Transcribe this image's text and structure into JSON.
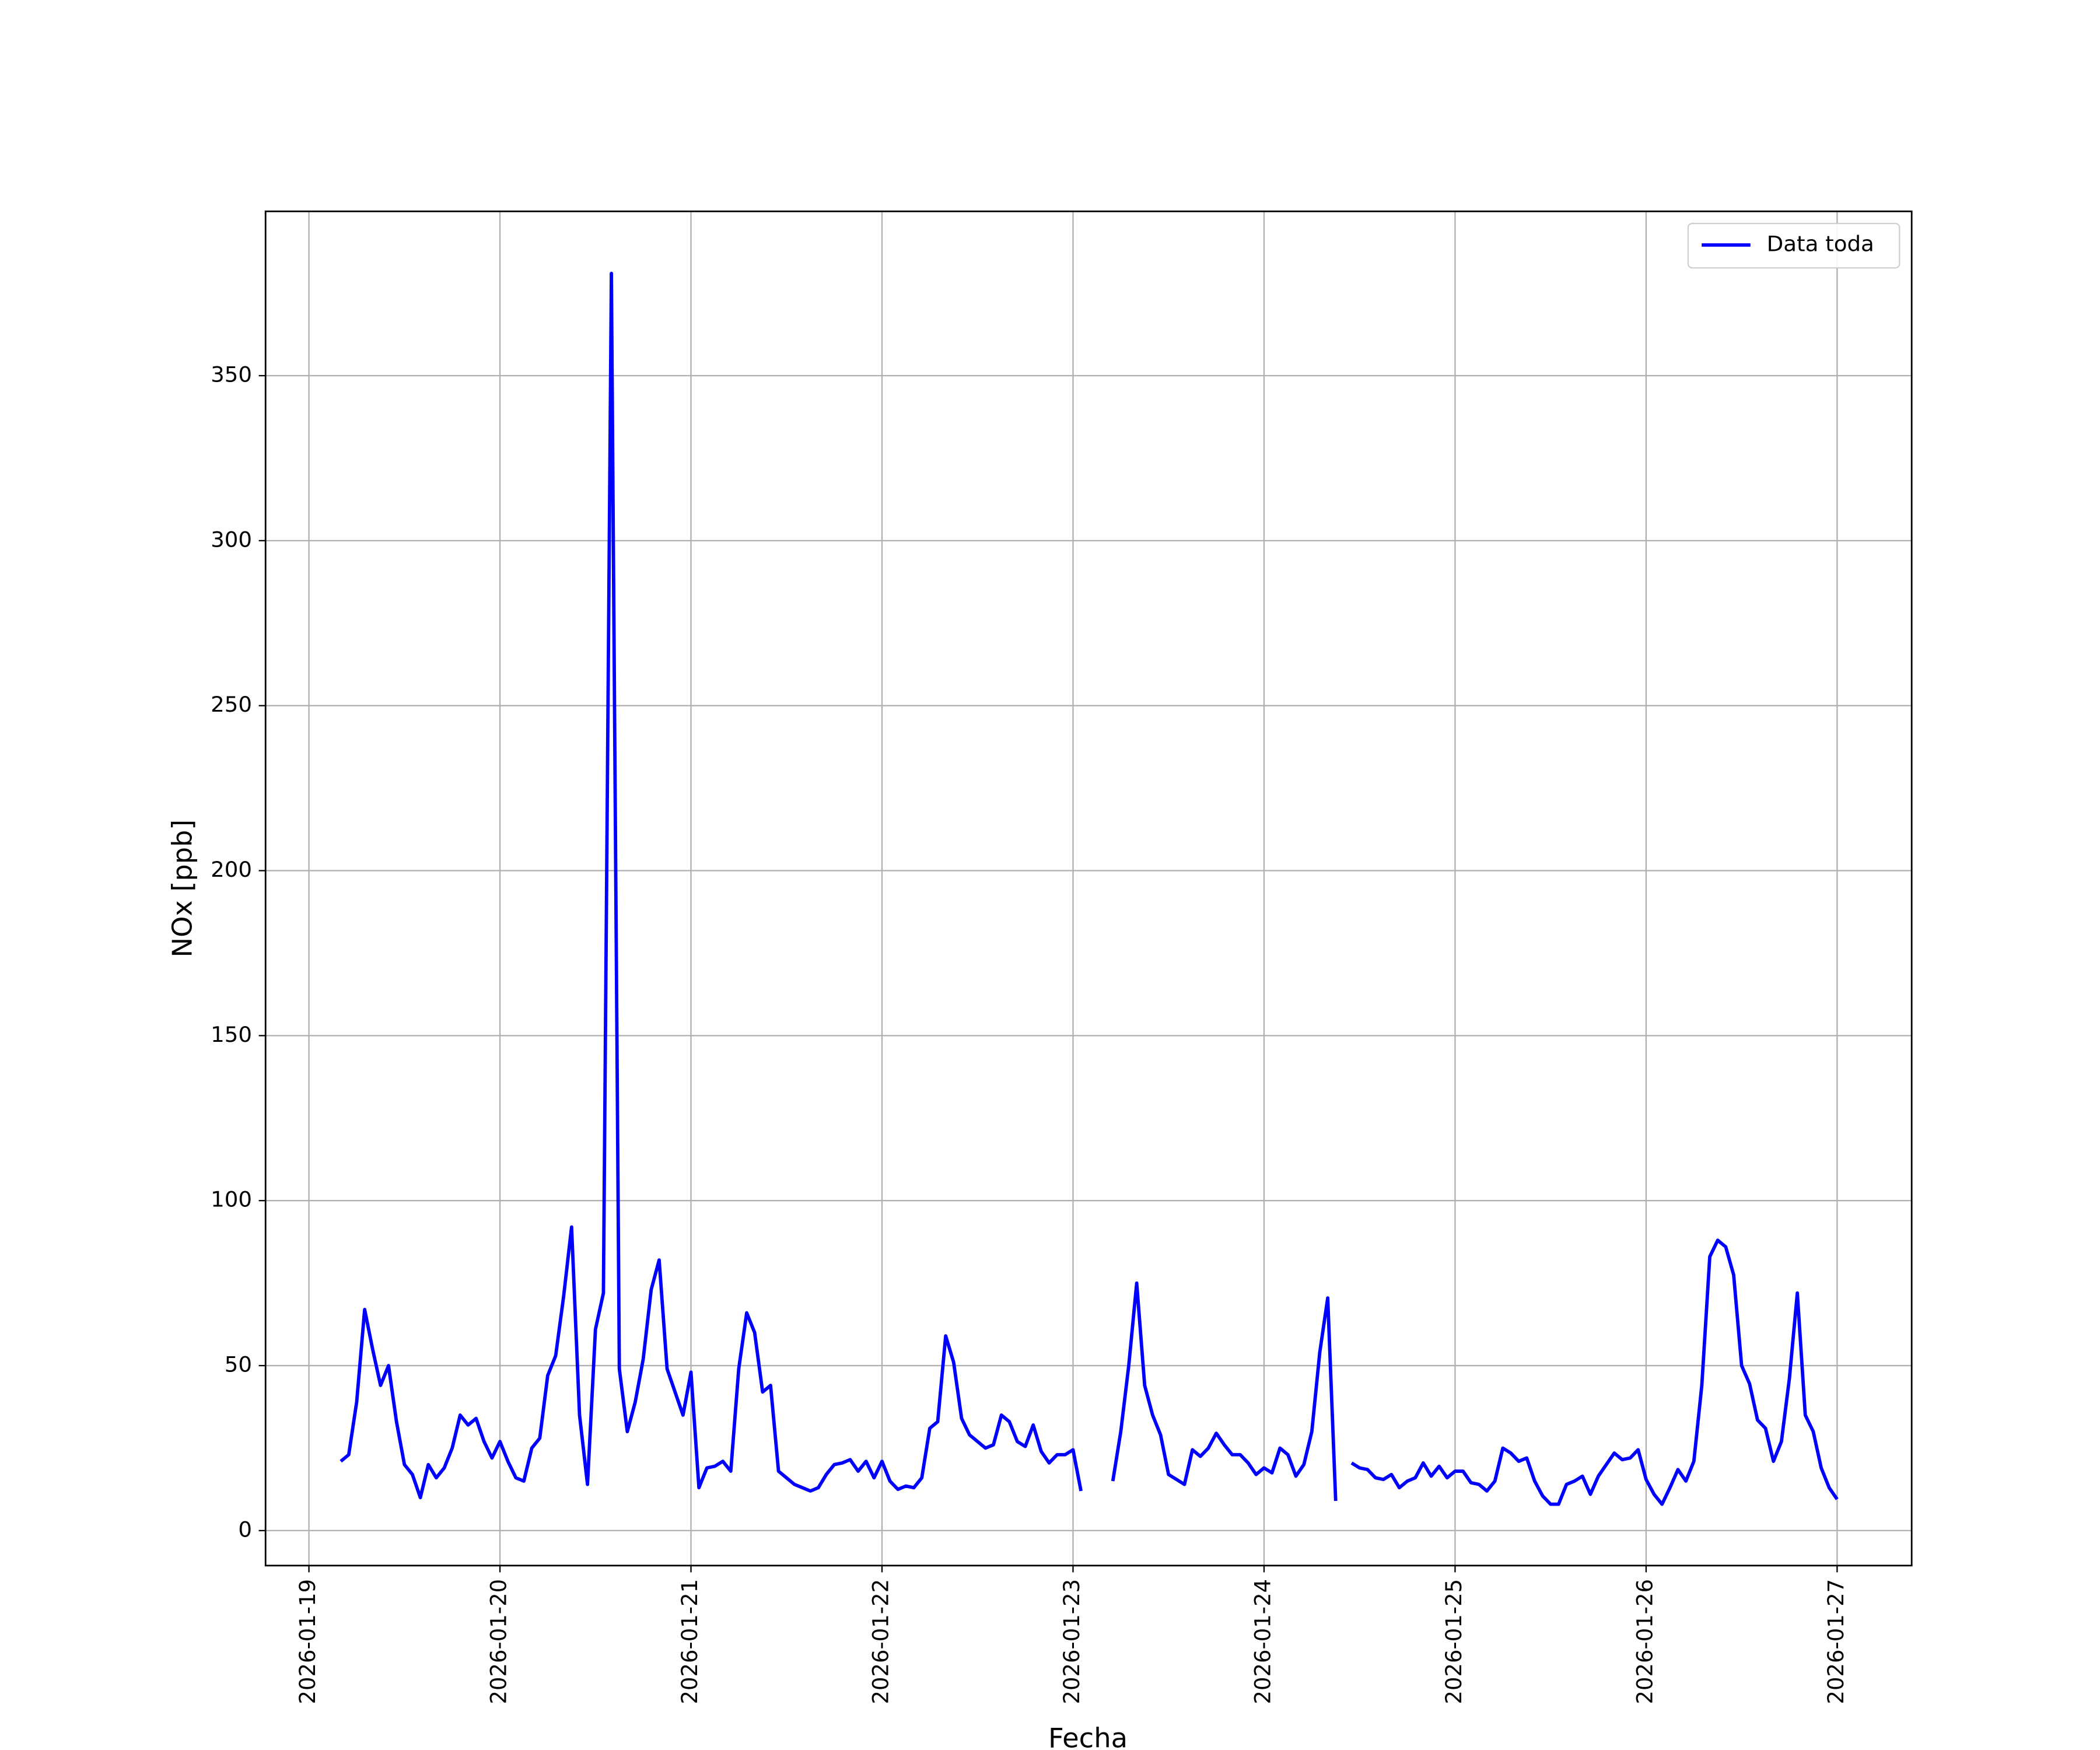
{
  "chart_data": {
    "type": "line",
    "xlabel": "Fecha",
    "ylabel": "NOx [ppb]",
    "x": [
      "2026-01-19 04:00",
      "2026-01-19 05:00",
      "2026-01-19 06:00",
      "2026-01-19 07:00",
      "2026-01-19 08:00",
      "2026-01-19 09:00",
      "2026-01-19 10:00",
      "2026-01-19 11:00",
      "2026-01-19 12:00",
      "2026-01-19 13:00",
      "2026-01-19 14:00",
      "2026-01-19 15:00",
      "2026-01-19 16:00",
      "2026-01-19 17:00",
      "2026-01-19 18:00",
      "2026-01-19 19:00",
      "2026-01-19 20:00",
      "2026-01-19 21:00",
      "2026-01-19 22:00",
      "2026-01-19 23:00",
      "2026-01-20 00:00",
      "2026-01-20 01:00",
      "2026-01-20 02:00",
      "2026-01-20 03:00",
      "2026-01-20 04:00",
      "2026-01-20 05:00",
      "2026-01-20 06:00",
      "2026-01-20 07:00",
      "2026-01-20 08:00",
      "2026-01-20 09:00",
      "2026-01-20 10:00",
      "2026-01-20 11:00",
      "2026-01-20 12:00",
      "2026-01-20 13:00",
      "2026-01-20 14:00",
      "2026-01-20 15:00",
      "2026-01-20 16:00",
      "2026-01-20 17:00",
      "2026-01-20 18:00",
      "2026-01-20 19:00",
      "2026-01-20 20:00",
      "2026-01-20 21:00",
      "2026-01-20 22:00",
      "2026-01-20 23:00",
      "2026-01-21 00:00",
      "2026-01-21 01:00",
      "2026-01-21 02:00",
      "2026-01-21 03:00",
      "2026-01-21 04:00",
      "2026-01-21 05:00",
      "2026-01-21 06:00",
      "2026-01-21 07:00",
      "2026-01-21 08:00",
      "2026-01-21 09:00",
      "2026-01-21 10:00",
      "2026-01-21 11:00",
      "2026-01-21 12:00",
      "2026-01-21 13:00",
      "2026-01-21 14:00",
      "2026-01-21 15:00",
      "2026-01-21 16:00",
      "2026-01-21 17:00",
      "2026-01-21 18:00",
      "2026-01-21 19:00",
      "2026-01-21 20:00",
      "2026-01-21 21:00",
      "2026-01-21 22:00",
      "2026-01-21 23:00",
      "2026-01-22 00:00",
      "2026-01-22 01:00",
      "2026-01-22 02:00",
      "2026-01-22 03:00",
      "2026-01-22 04:00",
      "2026-01-22 05:00",
      "2026-01-22 06:00",
      "2026-01-22 07:00",
      "2026-01-22 08:00",
      "2026-01-22 09:00",
      "2026-01-22 10:00",
      "2026-01-22 11:00",
      "2026-01-22 12:00",
      "2026-01-22 13:00",
      "2026-01-22 14:00",
      "2026-01-22 15:00",
      "2026-01-22 16:00",
      "2026-01-22 17:00",
      "2026-01-22 18:00",
      "2026-01-22 19:00",
      "2026-01-22 20:00",
      "2026-01-22 21:00",
      "2026-01-22 22:00",
      "2026-01-22 23:00",
      "2026-01-23 00:00",
      "2026-01-23 01:00",
      "2026-01-23 02:00",
      "2026-01-23 03:00",
      "2026-01-23 04:00",
      "2026-01-23 05:00",
      "2026-01-23 06:00",
      "2026-01-23 07:00",
      "2026-01-23 08:00",
      "2026-01-23 09:00",
      "2026-01-23 10:00",
      "2026-01-23 11:00",
      "2026-01-23 12:00",
      "2026-01-23 13:00",
      "2026-01-23 14:00",
      "2026-01-23 15:00",
      "2026-01-23 16:00",
      "2026-01-23 17:00",
      "2026-01-23 18:00",
      "2026-01-23 19:00",
      "2026-01-23 20:00",
      "2026-01-23 21:00",
      "2026-01-23 22:00",
      "2026-01-23 23:00",
      "2026-01-24 00:00",
      "2026-01-24 01:00",
      "2026-01-24 02:00",
      "2026-01-24 03:00",
      "2026-01-24 04:00",
      "2026-01-24 05:00",
      "2026-01-24 06:00",
      "2026-01-24 07:00",
      "2026-01-24 08:00",
      "2026-01-24 09:00",
      "2026-01-24 10:00",
      "2026-01-24 11:00",
      "2026-01-24 12:00",
      "2026-01-24 13:00",
      "2026-01-24 14:00",
      "2026-01-24 15:00",
      "2026-01-24 16:00",
      "2026-01-24 17:00",
      "2026-01-24 18:00",
      "2026-01-24 19:00",
      "2026-01-24 20:00",
      "2026-01-24 21:00",
      "2026-01-24 22:00",
      "2026-01-24 23:00",
      "2026-01-25 00:00",
      "2026-01-25 01:00",
      "2026-01-25 02:00",
      "2026-01-25 03:00",
      "2026-01-25 04:00",
      "2026-01-25 05:00",
      "2026-01-25 06:00",
      "2026-01-25 07:00",
      "2026-01-25 08:00",
      "2026-01-25 09:00",
      "2026-01-25 10:00",
      "2026-01-25 11:00",
      "2026-01-25 12:00",
      "2026-01-25 13:00",
      "2026-01-25 14:00",
      "2026-01-25 15:00",
      "2026-01-25 16:00",
      "2026-01-25 17:00",
      "2026-01-25 18:00",
      "2026-01-25 19:00",
      "2026-01-25 20:00",
      "2026-01-25 21:00",
      "2026-01-25 22:00",
      "2026-01-25 23:00",
      "2026-01-26 00:00",
      "2026-01-26 01:00",
      "2026-01-26 02:00",
      "2026-01-26 03:00",
      "2026-01-26 04:00",
      "2026-01-26 05:00",
      "2026-01-26 06:00",
      "2026-01-26 07:00",
      "2026-01-26 08:00",
      "2026-01-26 09:00",
      "2026-01-26 10:00",
      "2026-01-26 11:00",
      "2026-01-26 12:00",
      "2026-01-26 13:00",
      "2026-01-26 14:00",
      "2026-01-26 15:00",
      "2026-01-26 16:00",
      "2026-01-26 17:00",
      "2026-01-26 18:00",
      "2026-01-26 19:00",
      "2026-01-26 20:00",
      "2026-01-26 21:00",
      "2026-01-26 22:00",
      "2026-01-26 23:00",
      "2026-01-27 00:00"
    ],
    "series": [
      {
        "name": "Data toda",
        "color": "#0000ff",
        "values": [
          21,
          23,
          39,
          67,
          55,
          44,
          50,
          33,
          20,
          17,
          10,
          20,
          16,
          19,
          25,
          35,
          32,
          34,
          27,
          22,
          27,
          21,
          16,
          15,
          25,
          28,
          47,
          53,
          71,
          92,
          35,
          14,
          61,
          72,
          381,
          49,
          30,
          39,
          52,
          73,
          82,
          49,
          42,
          35,
          48,
          13,
          19,
          19.5,
          21,
          18,
          49,
          66,
          60,
          42,
          44,
          18,
          16,
          14,
          13,
          12,
          13,
          17,
          20,
          20.5,
          21.5,
          18,
          21,
          16,
          21,
          15,
          12.5,
          13.5,
          13,
          16,
          31,
          33,
          59,
          51,
          34,
          29,
          27,
          25,
          26,
          35,
          33,
          27,
          25.5,
          32,
          24,
          20.5,
          23,
          23,
          24.5,
          12,
          null,
          null,
          null,
          15,
          30,
          50,
          75,
          44,
          35,
          29,
          17,
          15.5,
          14,
          24.5,
          22.5,
          25,
          29.5,
          26,
          23,
          23,
          20.5,
          17,
          19,
          17.5,
          25,
          23,
          16.5,
          20,
          30,
          54,
          70.5,
          9,
          null,
          20.5,
          19,
          18.5,
          16,
          15.5,
          17,
          13,
          15,
          16,
          20.5,
          16.5,
          19.5,
          16,
          18,
          18,
          14.5,
          14,
          12,
          15,
          25,
          23.5,
          21,
          22,
          15,
          10.5,
          8,
          8,
          14,
          15,
          16.5,
          11,
          16.5,
          20,
          23.5,
          21.5,
          22,
          24.5,
          15.5,
          11,
          8,
          13,
          18.5,
          15,
          21,
          44,
          83,
          88,
          86,
          77.5,
          50,
          44.5,
          33.5,
          31,
          21,
          27,
          46,
          72,
          35,
          30,
          19,
          13,
          9.5
        ]
      }
    ],
    "xlim": [
      "2026-01-18 18:33",
      "2026-01-27 09:22"
    ],
    "xticks": [
      "2026-01-19",
      "2026-01-20",
      "2026-01-21",
      "2026-01-22",
      "2026-01-23",
      "2026-01-24",
      "2026-01-25",
      "2026-01-26",
      "2026-01-27"
    ],
    "ylim": [
      -10.6,
      399.8
    ],
    "yticks": [
      0,
      50,
      100,
      150,
      200,
      250,
      300,
      350
    ],
    "grid": true,
    "legend": "upper right"
  }
}
